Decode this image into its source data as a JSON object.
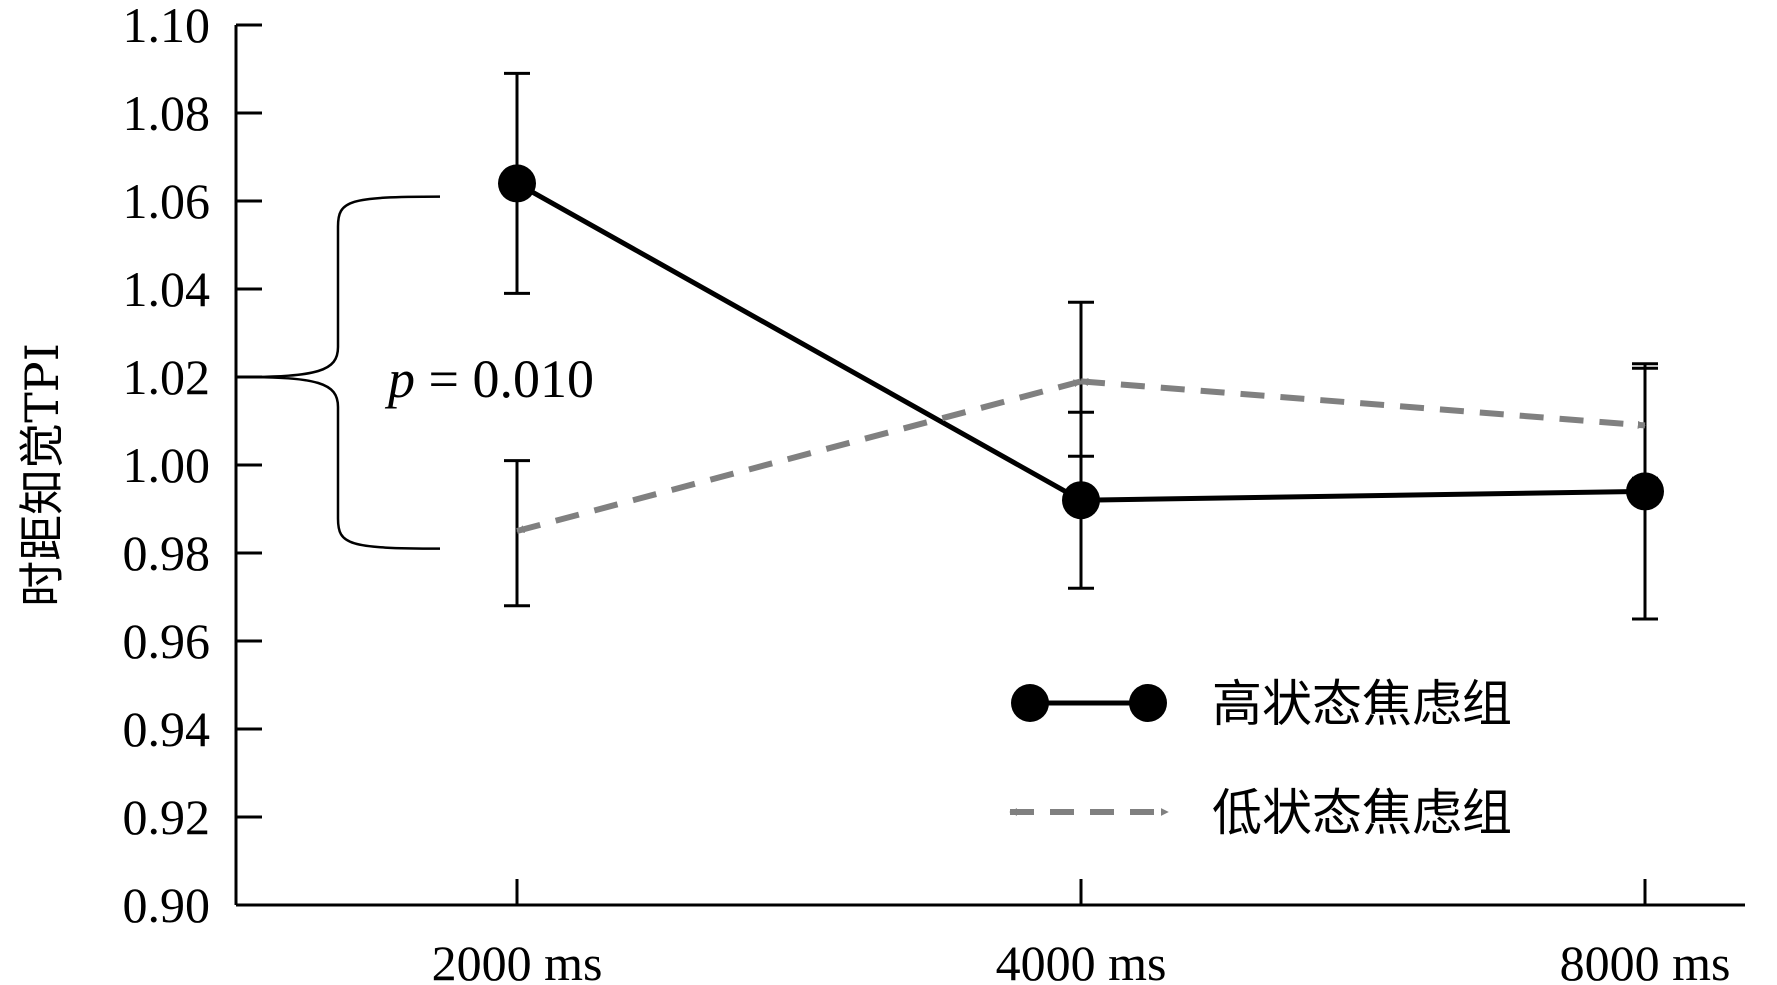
{
  "chart_data": {
    "type": "line",
    "title": "",
    "xlabel": "",
    "ylabel": "时距知觉TPI",
    "categories": [
      "2000 ms",
      "4000 ms",
      "8000 ms"
    ],
    "ylim": [
      0.9,
      1.1
    ],
    "yticks": [
      "0.90",
      "0.92",
      "0.94",
      "0.96",
      "0.98",
      "1.00",
      "1.02",
      "1.04",
      "1.06",
      "1.08",
      "1.10"
    ],
    "grid": false,
    "legend_position": "bottom-right",
    "series": [
      {
        "name": "高状态焦虑组",
        "values": [
          1.064,
          0.992,
          0.994
        ],
        "err_low": [
          1.039,
          0.972,
          0.965
        ],
        "err_high": [
          1.089,
          1.012,
          1.022
        ],
        "color": "#000000",
        "style": "solid",
        "marker": "circle"
      },
      {
        "name": "低状态焦虑组",
        "values": [
          0.985,
          1.019,
          1.009
        ],
        "err_low": [
          0.968,
          1.002,
          0.997
        ],
        "err_high": [
          1.001,
          1.037,
          1.023
        ],
        "color": "#808080",
        "style": "dashed",
        "marker": "arrow"
      }
    ],
    "annotations": [
      {
        "text_italic": "p",
        "text_rest": " = 0.010"
      }
    ]
  }
}
